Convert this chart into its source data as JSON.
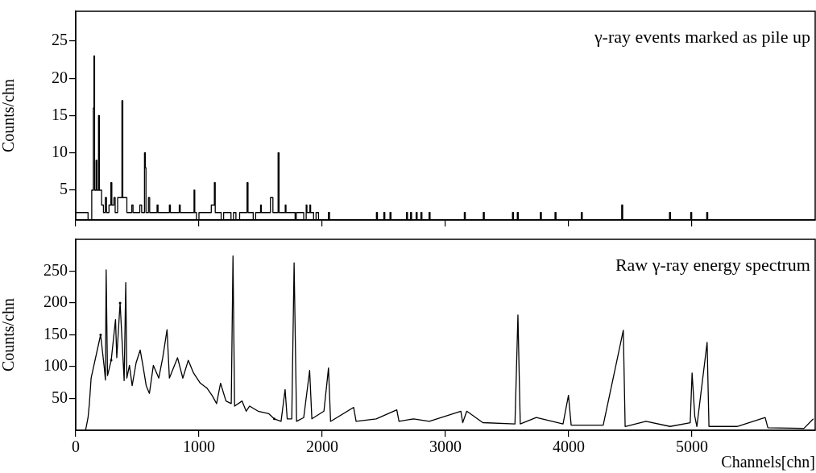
{
  "chart_data": [
    {
      "type": "step",
      "ylabel": "Counts/chn",
      "annotations": [
        "γ-ray events marked as pile up"
      ],
      "xlim": [
        0,
        6000
      ],
      "xticks": [
        0,
        1000,
        2000,
        3000,
        4000,
        5000
      ],
      "ylim": [
        1,
        29
      ],
      "yticks": [
        5,
        10,
        15,
        20,
        25
      ],
      "tick_labels": "y",
      "series": [
        {
          "color": "#000000",
          "x": [
            0,
            100,
            130,
            143,
            148,
            153,
            165,
            172,
            185,
            192,
            210,
            225,
            240,
            250,
            270,
            285,
            293,
            310,
            320,
            340,
            375,
            382,
            415,
            455,
            465,
            520,
            535,
            558,
            565,
            570,
            590,
            600,
            660,
            668,
            760,
            768,
            840,
            848,
            960,
            966,
            980,
            1000,
            1100,
            1125,
            1132,
            1180,
            1200,
            1260,
            1280,
            1300,
            1330,
            1390,
            1398,
            1440,
            1460,
            1500,
            1506,
            1580,
            1600,
            1642,
            1650,
            1700,
            1706,
            1780,
            1790,
            1850,
            1870,
            1876,
            1900,
            1906,
            1930,
            1950,
            1970,
            2050,
            2060,
            2440,
            2448,
            2500,
            2508,
            2550,
            2558,
            2684,
            2692,
            2717,
            2725,
            2762,
            2770,
            2801,
            2809,
            2867,
            2875,
            3153,
            3161,
            3307,
            3315,
            3544,
            3552,
            3583,
            3591,
            3770,
            3778,
            3889,
            3897,
            4102,
            4110,
            4430,
            4438,
            4818,
            4826,
            4990,
            4998,
            5120,
            5128,
            6000
          ],
          "values": [
            2,
            1,
            5,
            16,
            23,
            5,
            9,
            5,
            15,
            5,
            3,
            2,
            4,
            2,
            3,
            6,
            3,
            4,
            2,
            4,
            17,
            4,
            2,
            3,
            2,
            3,
            2,
            10,
            8,
            2,
            4,
            2,
            3,
            2,
            3,
            2,
            3,
            2,
            5,
            2,
            1,
            2,
            3,
            6,
            2,
            1,
            2,
            1,
            2,
            1,
            2,
            6,
            2,
            1,
            2,
            3,
            2,
            4,
            2,
            10,
            2,
            3,
            2,
            1,
            2,
            1,
            3,
            2,
            3,
            2,
            1,
            2,
            1,
            2,
            1,
            2,
            1,
            2,
            1,
            2,
            1,
            2,
            1,
            2,
            1,
            2,
            1,
            2,
            1,
            2,
            1,
            2,
            1,
            2,
            1,
            2,
            1,
            2,
            1,
            2,
            1,
            2,
            1,
            2,
            1,
            3,
            1,
            2,
            1,
            2,
            1,
            2,
            1,
            1
          ]
        }
      ]
    },
    {
      "type": "line",
      "xlabel": "Channels[chn]",
      "ylabel": "Counts/chn",
      "annotations": [
        "Raw γ-ray energy spectrum"
      ],
      "xlim": [
        0,
        6000
      ],
      "xticks": [
        0,
        1000,
        2000,
        3000,
        4000,
        5000
      ],
      "ylim": [
        0,
        300
      ],
      "yticks": [
        50,
        100,
        150,
        200,
        250
      ],
      "series": [
        {
          "color": "#000000",
          "x": [
            0,
            80,
            100,
            111,
            125,
            130,
            190,
            202,
            215,
            232,
            241,
            247,
            258,
            273,
            288,
            305,
            323,
            333,
            350,
            360,
            371,
            393,
            406,
            415,
            436,
            458,
            490,
            523,
            545,
            562,
            572,
            598,
            630,
            674,
            706,
            741,
            760,
            826,
            869,
            913,
            956,
            1011,
            1066,
            1109,
            1127,
            1143,
            1175,
            1219,
            1262,
            1276,
            1289,
            1350,
            1383,
            1396,
            1411,
            1480,
            1567,
            1594,
            1611,
            1644,
            1666,
            1699,
            1716,
            1753,
            1772,
            1792,
            1850,
            1898,
            1916,
            2014,
            2051,
            2068,
            2255,
            2275,
            2438,
            2605,
            2623,
            2742,
            2869,
            3125,
            3140,
            3173,
            3303,
            3564,
            3588,
            3607,
            3737,
            3954,
            3998,
            4020,
            4280,
            4443,
            4458,
            4627,
            4823,
            4986,
            5001,
            5023,
            5040,
            5123,
            5138,
            5366,
            5594,
            5616,
            5909,
            5985
          ],
          "values": [
            0,
            0,
            20,
            42,
            82,
            null,
            null,
            150,
            null,
            98,
            79,
            252,
            86,
            null,
            110,
            null,
            174,
            114,
            null,
            200,
            null,
            78,
            232,
            82,
            102,
            70,
            106,
            126,
            102,
            null,
            70,
            58,
            102,
            82,
            114,
            158,
            82,
            114,
            82,
            110,
            90,
            74,
            66,
            54,
            null,
            42,
            74,
            46,
            42,
            274,
            38,
            46,
            30,
            null,
            38,
            30,
            26,
            null,
            18,
            null,
            14,
            64,
            18,
            18,
            263,
            14,
            20,
            94,
            18,
            30,
            98,
            14,
            36,
            14,
            18,
            32,
            14,
            18,
            14,
            30,
            12,
            30,
            12,
            10,
            181,
            10,
            20,
            10,
            55,
            8,
            8,
            157,
            6,
            14,
            6,
            12,
            90,
            22,
            6,
            138,
            6,
            6,
            20,
            4,
            3,
            18
          ]
        }
      ]
    }
  ]
}
